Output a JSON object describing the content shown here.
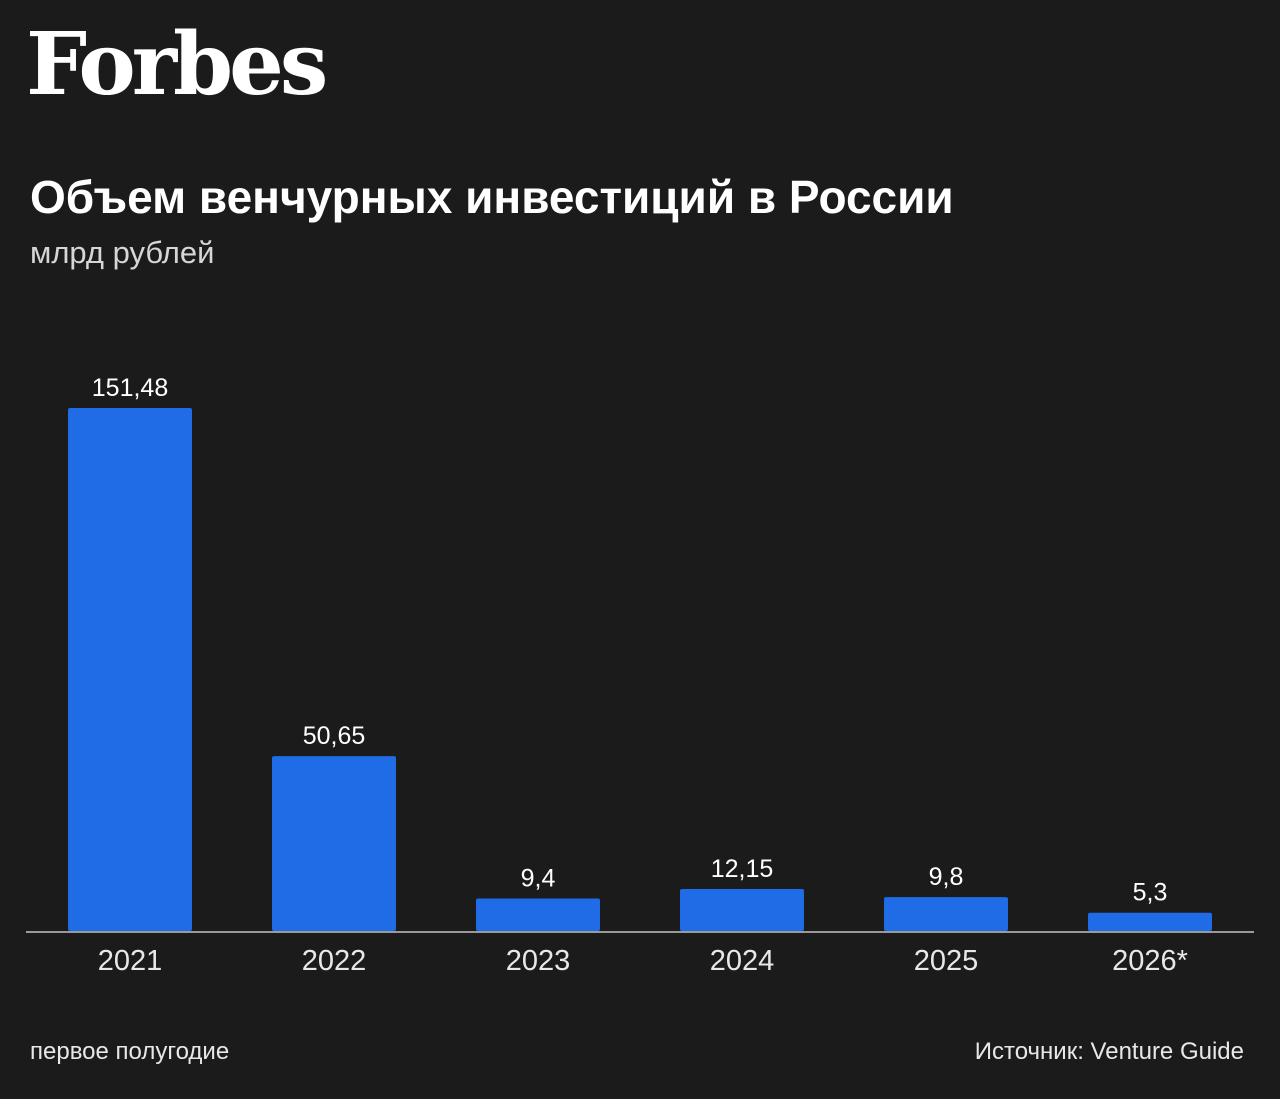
{
  "brand": {
    "logo_text": "Forbes"
  },
  "colors": {
    "background": "#1b1b1b",
    "bar": "#1f6ce6",
    "baseline": "#9a9a9a",
    "text": "#ffffff"
  },
  "footer": {
    "note": "первое полугодие",
    "source": "Источник: Venture Guide"
  },
  "chart_data": {
    "type": "bar",
    "title": "Объем венчурных инвестиций в России",
    "subtitle": "млрд рублей",
    "xlabel": "",
    "ylabel": "",
    "categories": [
      "2021",
      "2022",
      "2023",
      "2024",
      "2025",
      "2026*"
    ],
    "values": [
      151.48,
      50.65,
      9.4,
      12.15,
      9.8,
      5.3
    ],
    "value_labels": [
      "151,48",
      "50,65",
      "9,4",
      "12,15",
      "9,8",
      "5,3"
    ],
    "ylim": [
      0,
      151.48
    ],
    "grid": false,
    "legend": "none"
  }
}
